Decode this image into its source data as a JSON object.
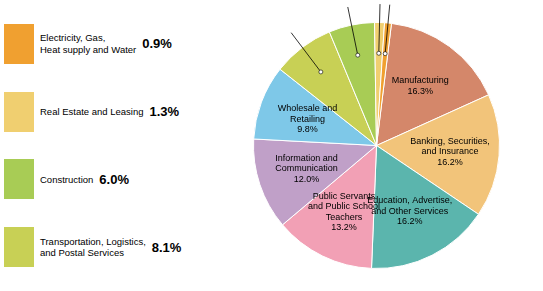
{
  "chart_data": {
    "type": "pie",
    "categories": [
      "Manufacturing",
      "Banking, Securities,\nand Insurance",
      "Education, Advertise,\nand Other Services",
      "Public Servants\nand Public School\nTeachers",
      "Information and\nCommunication",
      "Wholesale and\nRetailing",
      "Transportation, Logistics,\nand Postal Services",
      "Construction",
      "Real Estate and Leasing",
      "Electricity, Gas,\nHeat supply and Water"
    ],
    "values": [
      16.3,
      16.2,
      16.2,
      13.2,
      12.0,
      9.8,
      8.1,
      6.0,
      1.3,
      0.9
    ],
    "value_labels": [
      "16.3%",
      "16.2%",
      "16.2%",
      "13.2%",
      "12.0%",
      "9.8%",
      "8.1%",
      "6.0%",
      "1.3%",
      "0.9%"
    ],
    "colors": [
      "#D4876A",
      "#F2C47A",
      "#5BB5AD",
      "#F2A0B5",
      "#C0A0C8",
      "#7EC8E8",
      "#C8D055",
      "#A8CC55",
      "#F0CF70",
      "#F0A030"
    ],
    "data_labels": true,
    "legend": "left"
  }
}
